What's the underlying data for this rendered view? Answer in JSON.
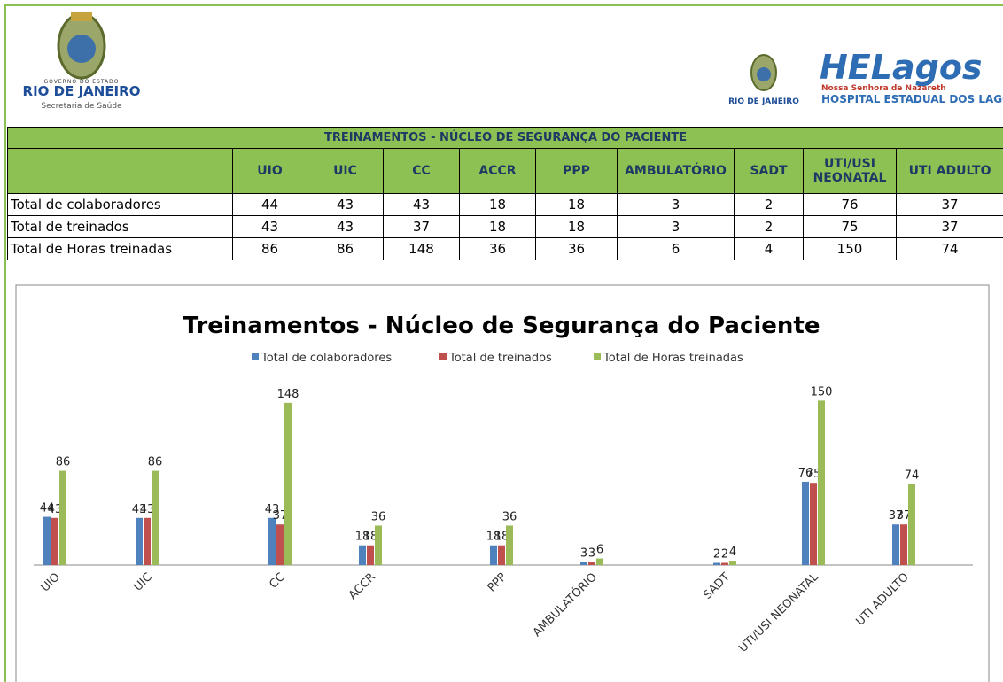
{
  "header": {
    "left_logo": {
      "line1": "GOVERNO DO ESTADO",
      "line2": "RIO DE JANEIRO",
      "line3": "Secretaria de Saúde"
    },
    "right_logo": {
      "small": "RIO DE JANEIRO",
      "brand": "HELagos",
      "line1": "Nossa Senhora de Nazareth",
      "line2": "HOSPITAL ESTADUAL DOS LAGOS"
    }
  },
  "table": {
    "title": "TREINAMENTOS - NÚCLEO DE SEGURANÇA DO PACIENTE"
  },
  "chart_data": {
    "type": "bar",
    "title": "Treinamentos - Núcleo de Segurança do Paciente",
    "categories": [
      "UIO",
      "UIC",
      "CC",
      "ACCR",
      "PPP",
      "AMBULATÓRIO",
      "SADT",
      "UTI/USI NEONATAL",
      "UTI ADULTO"
    ],
    "series": [
      {
        "name": "Total de colaboradores",
        "color": "#4f81bd",
        "values": [
          44,
          43,
          43,
          18,
          18,
          3,
          2,
          76,
          37
        ]
      },
      {
        "name": "Total de treinados",
        "color": "#c0504d",
        "values": [
          43,
          43,
          37,
          18,
          18,
          3,
          2,
          75,
          37
        ]
      },
      {
        "name": "Total de Horas treinadas",
        "color": "#9bbb59",
        "values": [
          86,
          86,
          148,
          36,
          36,
          6,
          4,
          150,
          74
        ]
      }
    ],
    "ylim": [
      0,
      160
    ],
    "legend": "top"
  }
}
